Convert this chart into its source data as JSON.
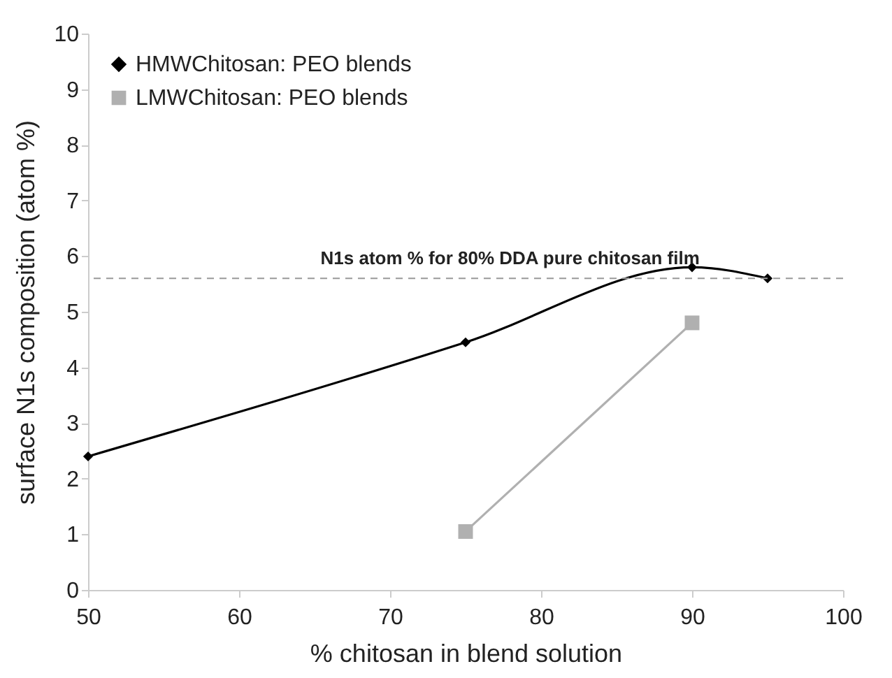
{
  "chart_data": {
    "type": "line",
    "xlabel": "% chitosan in blend solution",
    "ylabel": "surface N1s composition (atom %)",
    "xlim": [
      50,
      100
    ],
    "xticks": [
      50,
      60,
      70,
      80,
      90,
      100
    ],
    "ylim": [
      0,
      10
    ],
    "yticks": [
      0,
      1,
      2,
      3,
      4,
      5,
      6,
      7,
      8,
      9,
      10
    ],
    "grid": false,
    "legend": "top left",
    "series": [
      {
        "name": "HMWChitosan: PEO blends",
        "color": "#000000",
        "marker": "diamond",
        "x": [
          50,
          75,
          90,
          95
        ],
        "values": [
          2.4,
          4.45,
          5.8,
          5.6
        ]
      },
      {
        "name": "LMWChitosan: PEO blends",
        "color": "#b0b0b0",
        "marker": "square",
        "x": [
          75,
          90
        ],
        "values": [
          1.05,
          4.8
        ]
      }
    ],
    "ref_lines": [
      {
        "axis": "y",
        "value": 5.6,
        "label": "N1s atom % for 80% DDA pure chitosan film",
        "color": "#999999",
        "line_style": "dashed"
      }
    ]
  }
}
